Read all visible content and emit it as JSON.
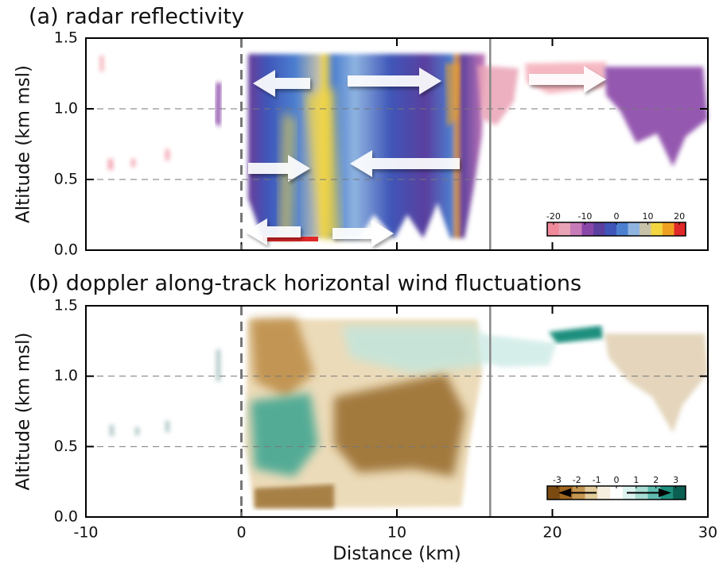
{
  "chart_data": [
    {
      "type": "heatmap",
      "title": "(a) radar reflectivity",
      "ylabel": "Altitude (km msl)",
      "xlim": [
        -10,
        30
      ],
      "xticks": [
        -10,
        0,
        10,
        20,
        30
      ],
      "xtick_labels": false,
      "ylim": [
        0,
        1.5
      ],
      "yticks": [
        {
          "value": 0,
          "label": "0.0"
        },
        {
          "value": 0.5,
          "label": "0.5"
        },
        {
          "value": 1.0,
          "label": "1.0"
        },
        {
          "value": 1.5,
          "label": "1.5"
        }
      ],
      "grid": true,
      "vlines": [
        {
          "x": 0,
          "style": "dashed",
          "color": "#777777"
        },
        {
          "x": 16,
          "style": "solid",
          "color": "#888888"
        }
      ],
      "colorbar": {
        "lim": [
          -22,
          22
        ],
        "ticks": [
          -20,
          -10,
          0,
          10,
          20
        ],
        "colors": [
          "#f08a9a",
          "#e9a3b6",
          "#c77ab8",
          "#8a47a8",
          "#5b3f9e",
          "#3f56b8",
          "#4c7fd0",
          "#8fb4e0",
          "#c8c2a8",
          "#f2d640",
          "#f0a020",
          "#e02828"
        ]
      }
    },
    {
      "type": "heatmap",
      "title": "(b) doppler along-track horizontal wind fluctuations",
      "ylabel": "Altitude (km msl)",
      "xlabel": "Distance (km)",
      "xlim": [
        -10,
        30
      ],
      "xticks": [
        -10,
        0,
        10,
        20,
        30
      ],
      "xtick_labels": true,
      "ylim": [
        0,
        1.5
      ],
      "yticks": [
        {
          "value": 0,
          "label": "0.0"
        },
        {
          "value": 0.5,
          "label": "0.5"
        },
        {
          "value": 1.0,
          "label": "1.0"
        },
        {
          "value": 1.5,
          "label": "1.5"
        }
      ],
      "grid": true,
      "vlines": [
        {
          "x": 0,
          "style": "dashed",
          "color": "#777777"
        },
        {
          "x": 16,
          "style": "solid",
          "color": "#888888"
        }
      ],
      "colorbar": {
        "lim": [
          -3.5,
          3.5
        ],
        "ticks": [
          -3,
          -2,
          -1,
          0,
          1,
          2,
          3
        ],
        "colors": [
          "#7a4a10",
          "#a0671e",
          "#c49650",
          "#e3cc9c",
          "#f6efe0",
          "#ffffff",
          "#dcf2ee",
          "#a8ddd4",
          "#5fbcae",
          "#1f8f7e",
          "#0b5f52"
        ]
      }
    }
  ]
}
